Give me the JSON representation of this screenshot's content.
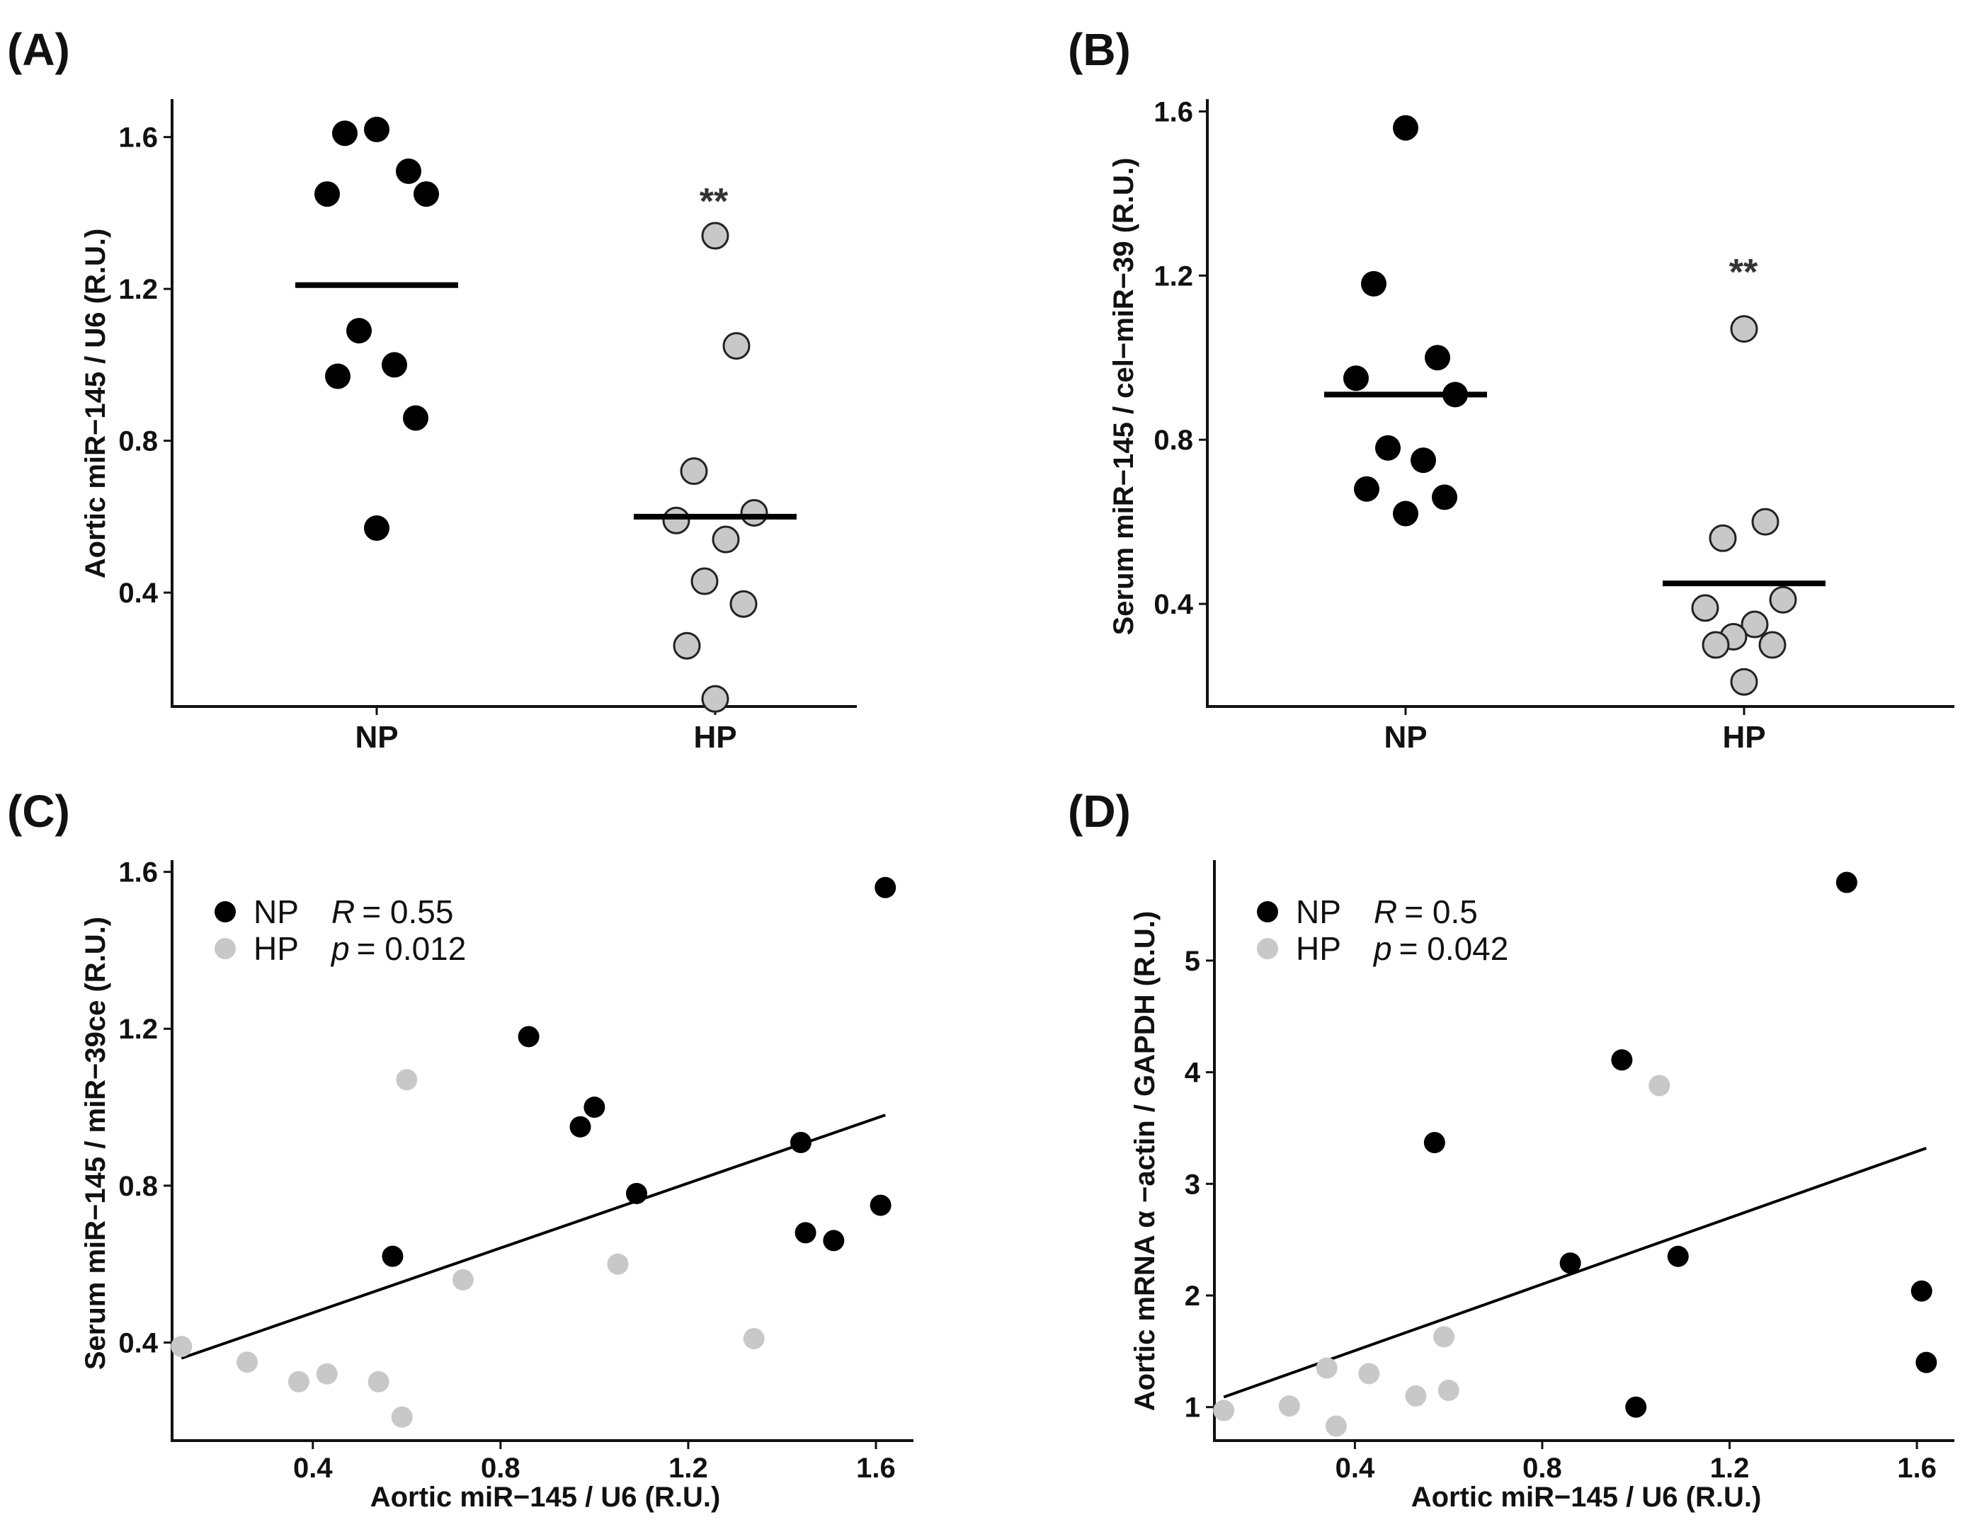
{
  "chart_data": [
    {
      "panel": "(A)",
      "type": "scatter",
      "subtype": "dot-plot",
      "categories": [
        "NP",
        "HP"
      ],
      "ylabel": "Aortic miR−145 / U6 (R.U.)",
      "xlabel": "",
      "ylim": [
        0.1,
        1.7
      ],
      "yticks": [
        0.4,
        0.8,
        1.2,
        1.6
      ],
      "series": [
        {
          "name": "NP",
          "color": "#000000",
          "values": [
            1.62,
            1.61,
            1.51,
            1.45,
            1.45,
            1.09,
            1.0,
            0.97,
            0.86,
            0.57
          ],
          "mean": 1.21
        },
        {
          "name": "HP",
          "color": "#c8c8c8",
          "values": [
            1.34,
            1.05,
            0.72,
            0.61,
            0.59,
            0.54,
            0.43,
            0.37,
            0.26,
            0.12
          ],
          "mean": 0.6,
          "significance": "**"
        }
      ]
    },
    {
      "panel": "(B)",
      "type": "scatter",
      "subtype": "dot-plot",
      "categories": [
        "NP",
        "HP"
      ],
      "ylabel": "Serum miR−145 / cel−miR−39 (R.U.)",
      "xlabel": "",
      "ylim": [
        0.15,
        1.63
      ],
      "yticks": [
        0.4,
        0.8,
        1.2,
        1.6
      ],
      "series": [
        {
          "name": "NP",
          "color": "#000000",
          "values": [
            1.56,
            1.18,
            1.0,
            0.95,
            0.91,
            0.78,
            0.75,
            0.68,
            0.66,
            0.62
          ],
          "mean": 0.91
        },
        {
          "name": "HP",
          "color": "#c8c8c8",
          "values": [
            1.07,
            0.6,
            0.56,
            0.41,
            0.39,
            0.35,
            0.32,
            0.3,
            0.3,
            0.21
          ],
          "mean": 0.45,
          "significance": "**"
        }
      ]
    },
    {
      "panel": "(C)",
      "type": "scatter",
      "xlabel": "Aortic miR−145 / U6 (R.U.)",
      "ylabel": "Serum miR−145 / miR−39ce (R.U.)",
      "xlim": [
        0.1,
        1.68
      ],
      "ylim": [
        0.15,
        1.63
      ],
      "xticks": [
        0.4,
        0.8,
        1.2,
        1.6
      ],
      "yticks": [
        0.4,
        0.8,
        1.2,
        1.6
      ],
      "legend": [
        {
          "name": "NP",
          "color": "#000000"
        },
        {
          "name": "HP",
          "color": "#c8c8c8"
        }
      ],
      "stats": {
        "r_label": "R",
        "r_value": "= 0.55",
        "p_label": "p",
        "p_value": "= 0.012"
      },
      "regression": {
        "x1": 0.12,
        "y1": 0.36,
        "x2": 1.62,
        "y2": 0.98
      },
      "series": [
        {
          "name": "NP",
          "color": "#000000",
          "points": [
            [
              0.57,
              0.62
            ],
            [
              0.86,
              1.18
            ],
            [
              0.97,
              0.95
            ],
            [
              1.0,
              1.0
            ],
            [
              1.09,
              0.78
            ],
            [
              1.44,
              0.91
            ],
            [
              1.45,
              0.68
            ],
            [
              1.51,
              0.66
            ],
            [
              1.61,
              0.75
            ],
            [
              1.62,
              1.56
            ]
          ]
        },
        {
          "name": "HP",
          "color": "#c8c8c8",
          "points": [
            [
              0.12,
              0.39
            ],
            [
              0.26,
              0.35
            ],
            [
              0.37,
              0.3
            ],
            [
              0.43,
              0.32
            ],
            [
              0.54,
              0.3
            ],
            [
              0.59,
              0.21
            ],
            [
              0.6,
              1.07
            ],
            [
              0.72,
              0.56
            ],
            [
              1.05,
              0.6
            ],
            [
              1.34,
              0.41
            ]
          ]
        }
      ]
    },
    {
      "panel": "(D)",
      "type": "scatter",
      "xlabel": "Aortic miR−145 / U6 (R.U.)",
      "ylabel": "Aortic mRNA  α −actin / GAPDH (R.U.)",
      "xlim": [
        0.1,
        1.68
      ],
      "ylim": [
        0.7,
        5.9
      ],
      "xticks": [
        0.4,
        0.8,
        1.2,
        1.6
      ],
      "yticks": [
        1,
        2,
        3,
        4,
        5
      ],
      "legend": [
        {
          "name": "NP",
          "color": "#000000"
        },
        {
          "name": "HP",
          "color": "#c8c8c8"
        }
      ],
      "stats": {
        "r_label": "R",
        "r_value": "= 0.5",
        "p_label": "p",
        "p_value": "= 0.042"
      },
      "regression": {
        "x1": 0.12,
        "y1": 1.09,
        "x2": 1.62,
        "y2": 3.32
      },
      "series": [
        {
          "name": "NP",
          "color": "#000000",
          "points": [
            [
              0.57,
              3.37
            ],
            [
              0.86,
              2.29
            ],
            [
              0.97,
              4.11
            ],
            [
              1.0,
              1.0
            ],
            [
              1.09,
              2.35
            ],
            [
              1.45,
              5.7
            ],
            [
              1.61,
              2.04
            ],
            [
              1.62,
              1.4
            ]
          ]
        },
        {
          "name": "HP",
          "color": "#c8c8c8",
          "points": [
            [
              0.12,
              0.97
            ],
            [
              0.26,
              1.01
            ],
            [
              0.34,
              1.35
            ],
            [
              0.36,
              0.83
            ],
            [
              0.43,
              1.3
            ],
            [
              0.53,
              1.1
            ],
            [
              0.59,
              1.63
            ],
            [
              0.6,
              1.15
            ],
            [
              1.05,
              3.88
            ]
          ]
        }
      ]
    }
  ]
}
